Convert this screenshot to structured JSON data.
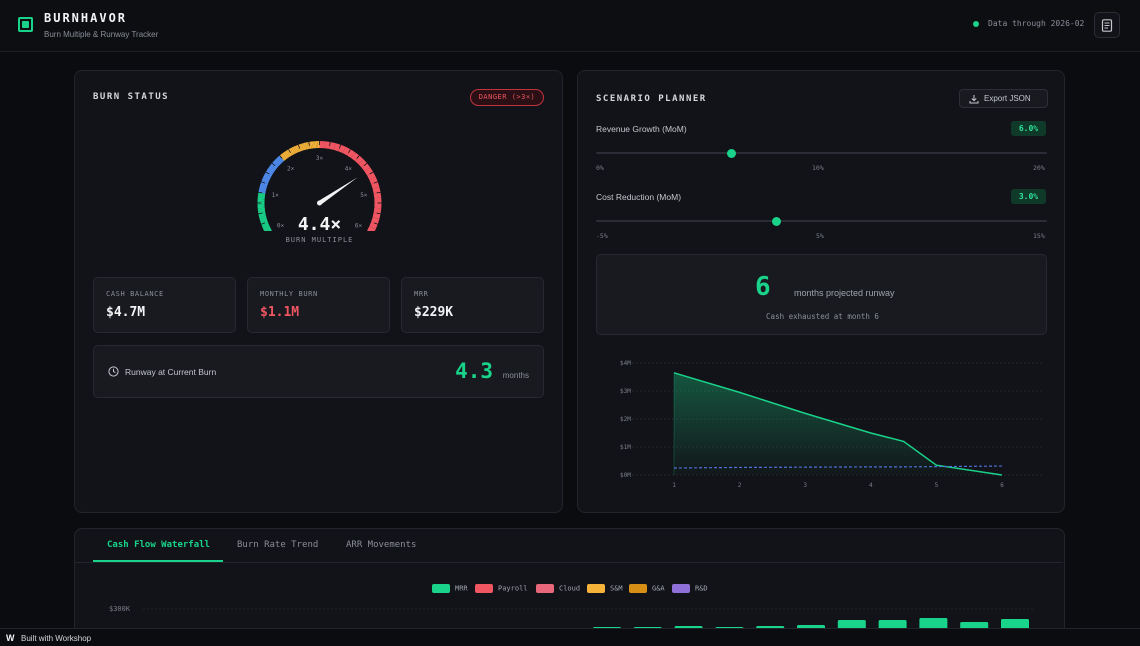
{
  "header": {
    "brand": "BURNHAVOR",
    "subtitle": "Burn Multiple & Runway Tracker",
    "data_through": "Data through 2026-02",
    "doc_icon": "document-icon"
  },
  "burn_status": {
    "title": "BURN STATUS",
    "badge": "DANGER (>3×)",
    "gauge": {
      "value": 4.4,
      "value_text": "4.4×",
      "label": "BURN MULTIPLE",
      "min": 0,
      "max": 6,
      "ticks": [
        "0×",
        "1×",
        "2×",
        "3×",
        "4×",
        "5×",
        "6×"
      ],
      "segment_colors": [
        "#19d38a",
        "#4f8cf0",
        "#f5b33a",
        "#f05562"
      ]
    },
    "stats": [
      {
        "label": "CASH BALANCE",
        "value": "$4.7M"
      },
      {
        "label": "MONTHLY BURN",
        "value": "$1.1M"
      },
      {
        "label": "MRR",
        "value": "$229K"
      }
    ],
    "runway": {
      "label": "Runway at Current Burn",
      "value": "4.3",
      "unit": "months"
    }
  },
  "scenario": {
    "title": "SCENARIO PLANNER",
    "export_label": "Export JSON",
    "revenue": {
      "label": "Revenue Growth (MoM)",
      "value_text": "6.0%",
      "value": 6.0,
      "min": 0,
      "max": 20,
      "ticks": [
        "0%",
        "10%",
        "20%"
      ]
    },
    "cost": {
      "label": "Cost Reduction (MoM)",
      "value_text": "3.0%",
      "value": 3.0,
      "min": -5,
      "max": 15,
      "ticks": [
        "-5%",
        "5%",
        "15%"
      ]
    },
    "projection": {
      "value": "6",
      "label": "months projected runway",
      "sub": "Cash exhausted at month 6"
    }
  },
  "chart_data": {
    "type": "area",
    "x": [
      1,
      2,
      3,
      4,
      4.5,
      5,
      6
    ],
    "series": [
      {
        "values": [
          3.65,
          2.95,
          2.2,
          1.5,
          1.2,
          0.35,
          0.0
        ],
        "color": "#19d38a"
      },
      {
        "values": [
          0.25,
          0.27,
          0.28,
          0.29,
          0.29,
          0.3,
          0.32
        ],
        "color": "#4f6fd8",
        "style": "dashed"
      }
    ],
    "y_ticks": [
      "$4M",
      "$3M",
      "$2M",
      "$1M",
      "$0M"
    ],
    "y_tick_values": [
      4,
      3,
      2,
      1,
      0
    ],
    "x_ticks": [
      "1",
      "2",
      "3",
      "4",
      "5",
      "6"
    ],
    "ylim": [
      0,
      4
    ],
    "xlim": [
      1,
      6
    ],
    "grid": true
  },
  "bottom": {
    "tabs": [
      "Cash Flow Waterfall",
      "Burn Rate Trend",
      "ARR Movements"
    ],
    "legend": [
      {
        "name": "MRR",
        "color": "#19d38a"
      },
      {
        "name": "Payroll",
        "color": "#f05562"
      },
      {
        "name": "Cloud",
        "color": "#e8677a"
      },
      {
        "name": "S&M",
        "color": "#f5b33a"
      },
      {
        "name": "G&A",
        "color": "#d68f14"
      },
      {
        "name": "R&D",
        "color": "#8f6fd8"
      }
    ],
    "waterfall": {
      "y_tick": "$300K",
      "bar_values": [
        0.2,
        0.2,
        0.3,
        0.2,
        0.3,
        0.4,
        0.9,
        0.9,
        1.1,
        0.7,
        1.0
      ]
    }
  },
  "footer": {
    "logo": "W",
    "text": "Built with Workshop"
  }
}
